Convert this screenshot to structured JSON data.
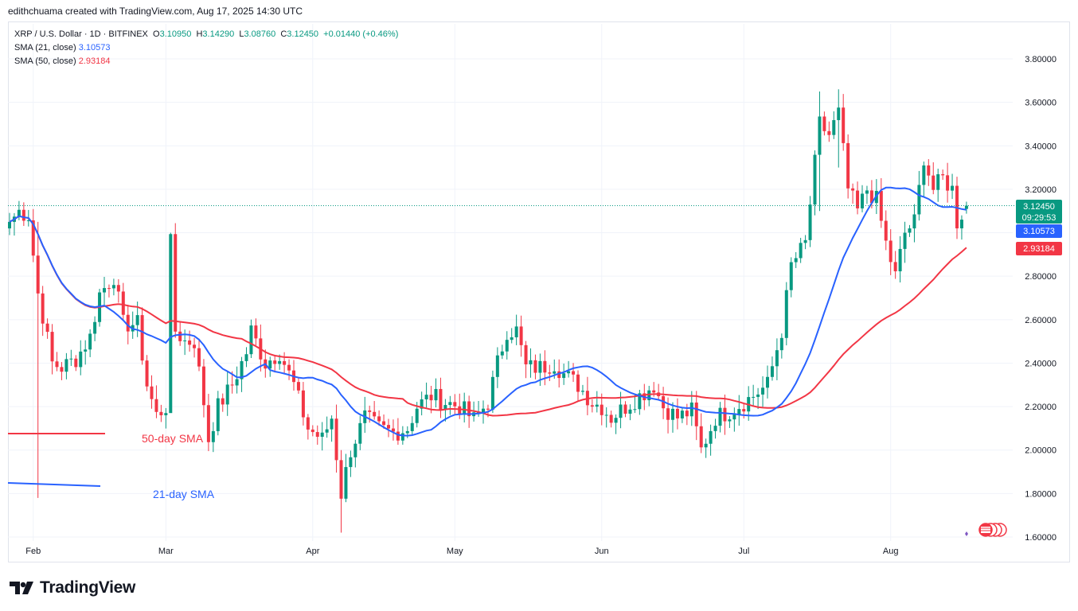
{
  "header": {
    "attribution": "edithchuama created with TradingView.com, Aug 17, 2025 14:30 UTC"
  },
  "legend": {
    "symbol": "XRP / U.S. Dollar · 1D · BITFINEX",
    "o_label": "O",
    "o_value": "3.10950",
    "h_label": "H",
    "h_value": "3.14290",
    "l_label": "L",
    "l_value": "3.08760",
    "c_label": "C",
    "c_value": "3.12450",
    "change": "+0.01440 (+0.46%)",
    "sma21_label": "SMA (21, close)",
    "sma21_value": "3.10573",
    "sma50_label": "SMA (50, close)",
    "sma50_value": "2.93184"
  },
  "annotations": {
    "sma50_label": "50-day SMA",
    "sma21_label": "21-day SMA"
  },
  "price_tags": {
    "last_price": "3.12450",
    "countdown": "09:29:53",
    "sma21": "3.10573",
    "sma50": "2.93184"
  },
  "footer": {
    "brand": "TradingView"
  },
  "colors": {
    "up": "#089981",
    "down": "#f23645",
    "sma21": "#2962ff",
    "sma50": "#f23645",
    "grid": "#f0f3fa"
  },
  "chart_data": {
    "type": "candlestick",
    "ylim": [
      1.6,
      3.9
    ],
    "y_ticks": [
      "3.80000",
      "3.60000",
      "3.40000",
      "3.20000",
      "3.00000",
      "2.80000",
      "2.60000",
      "2.40000",
      "2.20000",
      "2.00000",
      "1.80000",
      "1.60000"
    ],
    "x_ticks": [
      {
        "label": "Feb",
        "date": "2025-02-01"
      },
      {
        "label": "Mar",
        "date": "2025-03-01"
      },
      {
        "label": "Apr",
        "date": "2025-04-01"
      },
      {
        "label": "May",
        "date": "2025-05-01"
      },
      {
        "label": "Jun",
        "date": "2025-06-01"
      },
      {
        "label": "Jul",
        "date": "2025-07-01"
      },
      {
        "label": "Aug",
        "date": "2025-08-01"
      }
    ],
    "first_date": "2025-01-27",
    "close_anchors": [
      [
        "2025-01-27",
        3.05
      ],
      [
        "2025-01-29",
        3.1
      ],
      [
        "2025-01-31",
        3.08
      ],
      [
        "2025-02-02",
        2.72
      ],
      [
        "2025-02-03",
        2.62
      ],
      [
        "2025-02-05",
        2.4
      ],
      [
        "2025-02-07",
        2.38
      ],
      [
        "2025-02-10",
        2.42
      ],
      [
        "2025-02-13",
        2.52
      ],
      [
        "2025-02-15",
        2.72
      ],
      [
        "2025-02-18",
        2.8
      ],
      [
        "2025-02-20",
        2.58
      ],
      [
        "2025-02-23",
        2.58
      ],
      [
        "2025-02-25",
        2.3
      ],
      [
        "2025-02-27",
        2.16
      ],
      [
        "2025-03-01",
        2.2
      ],
      [
        "2025-03-02",
        2.95
      ],
      [
        "2025-03-03",
        2.55
      ],
      [
        "2025-03-05",
        2.5
      ],
      [
        "2025-03-07",
        2.5
      ],
      [
        "2025-03-09",
        2.22
      ],
      [
        "2025-03-10",
        2.05
      ],
      [
        "2025-03-12",
        2.2
      ],
      [
        "2025-03-15",
        2.3
      ],
      [
        "2025-03-18",
        2.45
      ],
      [
        "2025-03-19",
        2.55
      ],
      [
        "2025-03-22",
        2.4
      ],
      [
        "2025-03-25",
        2.45
      ],
      [
        "2025-03-28",
        2.3
      ],
      [
        "2025-03-31",
        2.1
      ],
      [
        "2025-04-03",
        2.05
      ],
      [
        "2025-04-05",
        2.15
      ],
      [
        "2025-04-07",
        1.8
      ],
      [
        "2025-04-09",
        2.0
      ],
      [
        "2025-04-12",
        2.15
      ],
      [
        "2025-04-15",
        2.1
      ],
      [
        "2025-04-18",
        2.08
      ],
      [
        "2025-04-21",
        2.1
      ],
      [
        "2025-04-23",
        2.2
      ],
      [
        "2025-04-26",
        2.25
      ],
      [
        "2025-04-29",
        2.22
      ],
      [
        "2025-05-02",
        2.2
      ],
      [
        "2025-05-05",
        2.14
      ],
      [
        "2025-05-08",
        2.22
      ],
      [
        "2025-05-10",
        2.4
      ],
      [
        "2025-05-12",
        2.55
      ],
      [
        "2025-05-14",
        2.55
      ],
      [
        "2025-05-16",
        2.38
      ],
      [
        "2025-05-19",
        2.38
      ],
      [
        "2025-05-22",
        2.4
      ],
      [
        "2025-05-24",
        2.35
      ],
      [
        "2025-05-27",
        2.3
      ],
      [
        "2025-05-30",
        2.22
      ],
      [
        "2025-06-01",
        2.2
      ],
      [
        "2025-06-03",
        2.15
      ],
      [
        "2025-06-06",
        2.2
      ],
      [
        "2025-06-09",
        2.25
      ],
      [
        "2025-06-12",
        2.3
      ],
      [
        "2025-06-14",
        2.2
      ],
      [
        "2025-06-17",
        2.15
      ],
      [
        "2025-06-20",
        2.18
      ],
      [
        "2025-06-22",
        2.0
      ],
      [
        "2025-06-23",
        2.05
      ],
      [
        "2025-06-25",
        2.15
      ],
      [
        "2025-06-28",
        2.18
      ],
      [
        "2025-07-01",
        2.22
      ],
      [
        "2025-07-03",
        2.25
      ],
      [
        "2025-07-06",
        2.3
      ],
      [
        "2025-07-09",
        2.55
      ],
      [
        "2025-07-11",
        2.85
      ],
      [
        "2025-07-14",
        2.95
      ],
      [
        "2025-07-17",
        3.5
      ],
      [
        "2025-07-19",
        3.45
      ],
      [
        "2025-07-21",
        3.55
      ],
      [
        "2025-07-23",
        3.2
      ],
      [
        "2025-07-25",
        3.1
      ],
      [
        "2025-07-27",
        3.2
      ],
      [
        "2025-07-29",
        3.15
      ],
      [
        "2025-07-31",
        2.95
      ],
      [
        "2025-08-02",
        2.8
      ],
      [
        "2025-08-04",
        3.0
      ],
      [
        "2025-08-06",
        3.05
      ],
      [
        "2025-08-08",
        3.35
      ],
      [
        "2025-08-10",
        3.2
      ],
      [
        "2025-08-12",
        3.25
      ],
      [
        "2025-08-14",
        3.2
      ],
      [
        "2025-08-15",
        3.05
      ],
      [
        "2025-08-17",
        3.1245
      ]
    ],
    "candles": {
      "2025-02-02": {
        "high": 3.05,
        "low": 1.78
      },
      "2025-03-02": {
        "high": 3.0,
        "low": 2.45
      },
      "2025-04-07": {
        "high": 2.0,
        "low": 1.62
      },
      "2025-07-17": {
        "high": 3.65,
        "low": 3.1
      },
      "2025-07-21": {
        "high": 3.66,
        "low": 3.3
      },
      "2025-08-17": {
        "open": 3.1095,
        "high": 3.1429,
        "low": 3.0876,
        "close": 3.1245
      }
    },
    "series": [
      {
        "name": "SMA (21, close)",
        "role": "sma21",
        "last": 3.10573
      },
      {
        "name": "SMA (50, close)",
        "role": "sma50",
        "last": 2.93184
      }
    ]
  }
}
